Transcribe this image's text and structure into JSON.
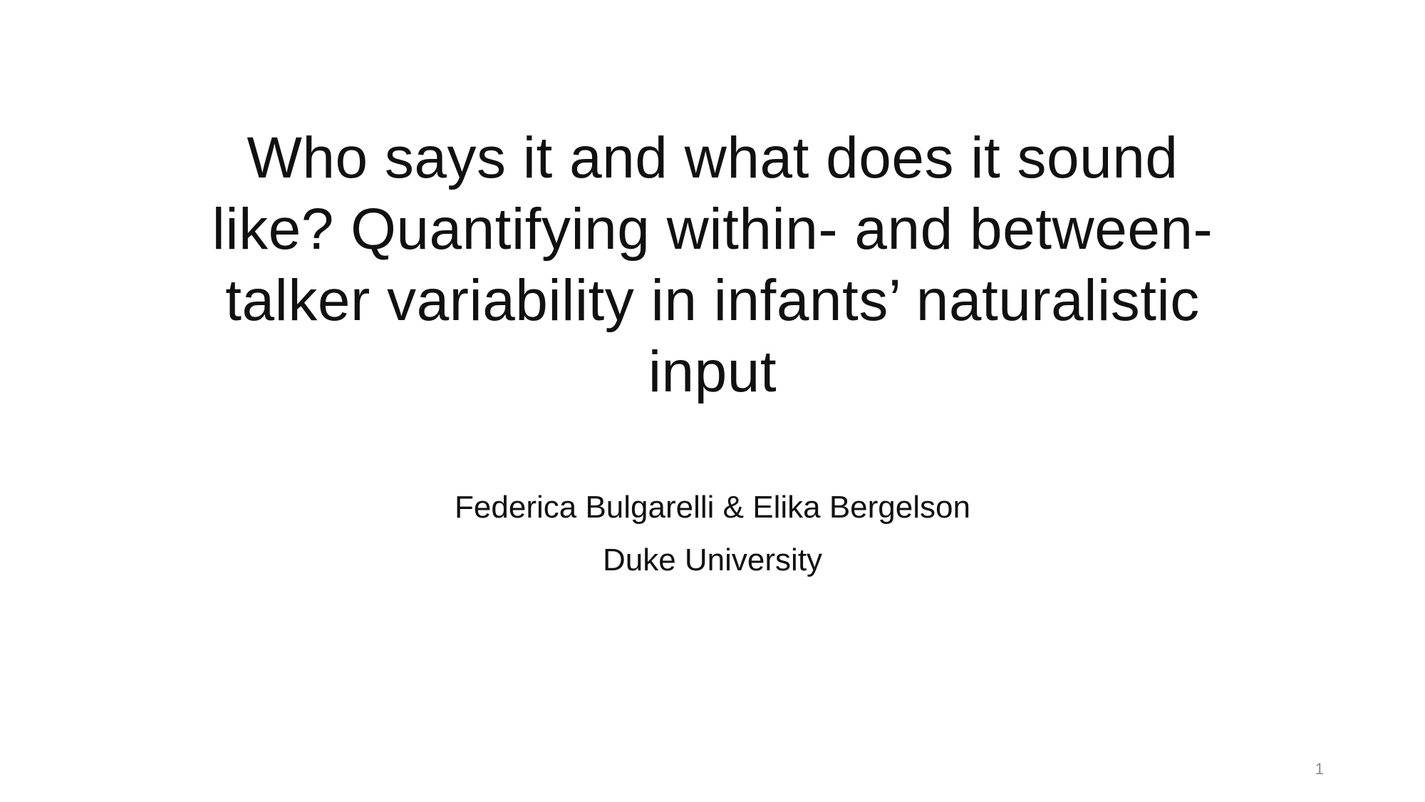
{
  "slide": {
    "title_lines": [
      "Who says it and what does it sound",
      "like? Quantifying within- and between-",
      "talker variability in infants’ naturalistic",
      "input"
    ],
    "authors": "Federica Bulgarelli & Elika Bergelson",
    "affiliation": "Duke University",
    "page_number": "1"
  }
}
